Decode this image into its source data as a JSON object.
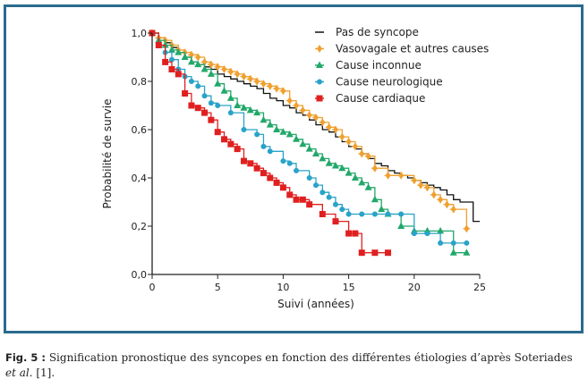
{
  "chart_data": {
    "type": "line",
    "subtype": "kaplan-meier step",
    "xlabel": "Suivi (années)",
    "ylabel": "Probabilité de survie",
    "xlim": [
      0,
      25
    ],
    "ylim": [
      0,
      1
    ],
    "xticks": [
      0,
      5,
      10,
      15,
      20,
      25
    ],
    "xtick_labels": [
      "0",
      "5",
      "10",
      "15",
      "20",
      "25"
    ],
    "yticks": [
      0,
      0.2,
      0.4,
      0.6,
      0.8,
      1.0
    ],
    "ytick_labels": [
      "0,0",
      "0,2",
      "0,4",
      "0,6",
      "0,8",
      "1,0"
    ],
    "legend_position": "top-right",
    "series": [
      {
        "name": "Pas de syncope",
        "color": "#111111",
        "marker": "none",
        "x": [
          0,
          0.5,
          1,
          1.5,
          2,
          2.5,
          3,
          3.5,
          4,
          4.5,
          5,
          5.5,
          6,
          6.5,
          7,
          7.5,
          8,
          8.5,
          9,
          9.5,
          10,
          10.5,
          11,
          11.5,
          12,
          12.5,
          13,
          13.5,
          14,
          14.5,
          15,
          15.5,
          16,
          16.5,
          17,
          17.5,
          18,
          18.5,
          19,
          19.5,
          20,
          20.5,
          21,
          21.5,
          22,
          22.5,
          23,
          23.5,
          24,
          24.5,
          25
        ],
        "y": [
          1.0,
          0.98,
          0.96,
          0.94,
          0.92,
          0.9,
          0.88,
          0.87,
          0.86,
          0.85,
          0.83,
          0.82,
          0.81,
          0.8,
          0.79,
          0.78,
          0.77,
          0.75,
          0.73,
          0.72,
          0.7,
          0.69,
          0.67,
          0.66,
          0.64,
          0.62,
          0.6,
          0.59,
          0.57,
          0.55,
          0.53,
          0.52,
          0.5,
          0.48,
          0.46,
          0.45,
          0.43,
          0.42,
          0.41,
          0.4,
          0.39,
          0.38,
          0.37,
          0.36,
          0.35,
          0.33,
          0.31,
          0.3,
          0.3,
          0.22,
          0.22
        ]
      },
      {
        "name": "Vasovagale et autres causes",
        "color": "#f0a030",
        "marker": "diamond",
        "x": [
          0,
          0.5,
          1,
          1.5,
          2,
          2.5,
          3,
          3.5,
          4,
          4.5,
          5,
          5.5,
          6,
          6.5,
          7,
          7.5,
          8,
          8.5,
          9,
          9.5,
          10,
          10.5,
          11,
          11.5,
          12,
          12.5,
          13,
          13.5,
          14,
          14.5,
          15,
          15.5,
          16,
          16.5,
          17,
          18,
          19,
          20,
          20.5,
          21,
          21.5,
          22,
          22.5,
          23,
          24
        ],
        "y": [
          1.0,
          0.98,
          0.97,
          0.95,
          0.93,
          0.92,
          0.91,
          0.9,
          0.88,
          0.87,
          0.86,
          0.85,
          0.84,
          0.83,
          0.82,
          0.81,
          0.8,
          0.79,
          0.78,
          0.77,
          0.76,
          0.72,
          0.7,
          0.68,
          0.66,
          0.65,
          0.63,
          0.61,
          0.6,
          0.57,
          0.55,
          0.53,
          0.5,
          0.49,
          0.44,
          0.41,
          0.41,
          0.39,
          0.37,
          0.36,
          0.33,
          0.31,
          0.29,
          0.27,
          0.19
        ]
      },
      {
        "name": "Cause inconnue",
        "color": "#22a86a",
        "marker": "triangle",
        "x": [
          0,
          0.5,
          1,
          1.5,
          2,
          2.5,
          3,
          3.5,
          4,
          4.5,
          5,
          5.5,
          6,
          6.5,
          7,
          7.5,
          8,
          8.5,
          9,
          9.5,
          10,
          10.5,
          11,
          11.5,
          12,
          12.5,
          13,
          13.5,
          14,
          14.5,
          15,
          15.5,
          16,
          16.5,
          17,
          17.5,
          18,
          19,
          20,
          21,
          22,
          23,
          24
        ],
        "y": [
          1.0,
          0.97,
          0.95,
          0.93,
          0.92,
          0.9,
          0.88,
          0.87,
          0.85,
          0.83,
          0.79,
          0.76,
          0.73,
          0.7,
          0.69,
          0.68,
          0.67,
          0.64,
          0.62,
          0.6,
          0.59,
          0.58,
          0.56,
          0.54,
          0.52,
          0.5,
          0.48,
          0.46,
          0.45,
          0.44,
          0.42,
          0.4,
          0.38,
          0.36,
          0.31,
          0.27,
          0.25,
          0.2,
          0.18,
          0.18,
          0.18,
          0.09,
          0.09
        ]
      },
      {
        "name": "Cause neurologique",
        "color": "#29a3c8",
        "marker": "circle",
        "x": [
          0,
          0.5,
          1,
          1.5,
          2,
          2.5,
          3,
          3.5,
          4,
          4.5,
          5,
          6,
          7,
          8,
          8.5,
          9,
          10,
          10.5,
          11,
          12,
          12.5,
          13,
          13.5,
          14,
          14.5,
          15,
          16,
          17,
          18,
          19,
          20,
          21,
          22,
          23,
          24
        ],
        "y": [
          1.0,
          0.95,
          0.92,
          0.89,
          0.85,
          0.82,
          0.8,
          0.78,
          0.74,
          0.71,
          0.7,
          0.67,
          0.6,
          0.58,
          0.53,
          0.51,
          0.47,
          0.46,
          0.43,
          0.4,
          0.37,
          0.34,
          0.32,
          0.29,
          0.27,
          0.25,
          0.25,
          0.25,
          0.25,
          0.25,
          0.17,
          0.17,
          0.13,
          0.13,
          0.13
        ]
      },
      {
        "name": "Cause cardiaque",
        "color": "#e02020",
        "marker": "square",
        "x": [
          0,
          0.5,
          1,
          1.5,
          2,
          2.5,
          3,
          3.5,
          4,
          4.5,
          5,
          5.5,
          6,
          6.5,
          7,
          7.5,
          8,
          8.5,
          9,
          9.5,
          10,
          10.5,
          11,
          11.5,
          12,
          13,
          14,
          15,
          15.5,
          16,
          17,
          18
        ],
        "y": [
          1.0,
          0.95,
          0.88,
          0.85,
          0.83,
          0.75,
          0.7,
          0.69,
          0.67,
          0.64,
          0.59,
          0.56,
          0.54,
          0.52,
          0.47,
          0.46,
          0.44,
          0.42,
          0.4,
          0.38,
          0.36,
          0.33,
          0.31,
          0.31,
          0.29,
          0.25,
          0.22,
          0.17,
          0.17,
          0.09,
          0.09,
          0.09
        ]
      }
    ]
  },
  "caption": {
    "label": "Fig. 5 :",
    "text": " Signification pronostique des syncopes en fonction des différentes étiologies d’après Soteriades ",
    "italic": "et al.",
    "ref": " [1]."
  }
}
